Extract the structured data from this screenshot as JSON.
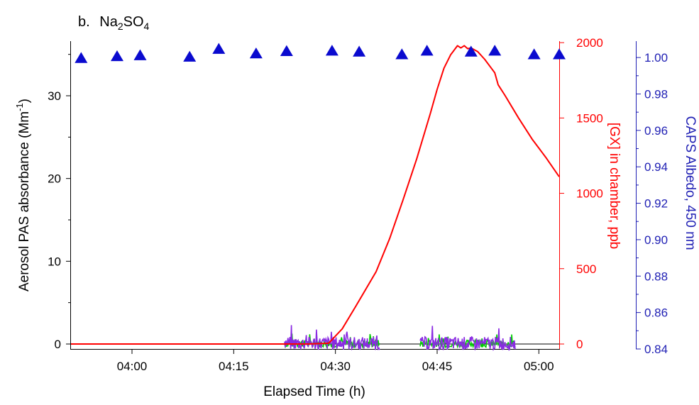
{
  "chart_data": {
    "type": "line",
    "panel_label": "b.",
    "title_main": "Na",
    "title_sub1": "2",
    "title_mid": "SO",
    "title_sub2": "4",
    "xlabel": "Elapsed Time (h)",
    "x_ticks": [
      "04:00",
      "04:15",
      "04:30",
      "04:45",
      "05:00"
    ],
    "x_tick_minutes": [
      0,
      15,
      30,
      45,
      60
    ],
    "xlim_minutes": [
      -9,
      63
    ],
    "left_axis": {
      "label_main": "Aerosol PAS absorbance (Mm",
      "label_sup": "-1",
      "label_end": ")",
      "ticks": [
        0,
        10,
        20,
        30
      ],
      "ylim": [
        -0.6,
        36.6
      ],
      "color": "#000000"
    },
    "right_axis_1": {
      "label": "[GX] in chamber, ppb",
      "ticks": [
        0,
        500,
        1000,
        1500,
        2000
      ],
      "ylim": [
        -33,
        2010
      ],
      "color": "#ff0000"
    },
    "right_axis_2": {
      "label": "CAPS Albedo, 450 nm",
      "ticks": [
        "0.84",
        "0.86",
        "0.88",
        "0.90",
        "0.92",
        "0.94",
        "0.96",
        "0.98",
        "1.00"
      ],
      "tick_values": [
        0.84,
        0.86,
        0.88,
        0.9,
        0.92,
        0.94,
        0.96,
        0.98,
        1.0
      ],
      "ylim": [
        0.84,
        1.009
      ],
      "color": "#1f1fb4"
    },
    "series": [
      {
        "name": "[GX] in chamber",
        "axis": "right_axis_1",
        "color": "#ff0000",
        "x": [
          -9,
          22,
          26,
          29,
          31,
          33,
          36,
          38,
          40,
          42,
          44,
          45,
          46,
          47,
          48,
          48.5,
          49,
          49.5,
          50,
          51,
          52,
          53,
          53.5,
          54,
          55,
          57,
          59,
          61,
          63
        ],
        "y": [
          0,
          0,
          0,
          5,
          100,
          250,
          480,
          700,
          960,
          1230,
          1530,
          1690,
          1830,
          1920,
          1980,
          1965,
          1980,
          1960,
          1965,
          1940,
          1890,
          1830,
          1800,
          1720,
          1650,
          1500,
          1360,
          1240,
          1110
        ]
      },
      {
        "name": "CAPS Albedo",
        "axis": "right_axis_2",
        "color": "#0a0acf",
        "marker": "triangle",
        "x": [
          -7.5,
          -2.2,
          1.2,
          8.5,
          12.8,
          18.3,
          22.8,
          29.5,
          33.5,
          39.8,
          43.5,
          50,
          53.5,
          59.3,
          63
        ],
        "y": [
          0.9995,
          1.0005,
          1.001,
          1.0002,
          1.0045,
          1.002,
          1.0033,
          1.0035,
          1.003,
          1.0015,
          1.0035,
          1.003,
          1.0035,
          1.0015,
          1.0015
        ]
      },
      {
        "name": "PAS absorbance (green)",
        "axis": "left_axis",
        "color": "#00cc00",
        "segments": [
          [
            22.5,
            36.5
          ],
          [
            42.5,
            56.5
          ]
        ],
        "amplitude": 0.9
      },
      {
        "name": "PAS absorbance (purple)",
        "axis": "left_axis",
        "color": "#8a2be2",
        "segments": [
          [
            22.5,
            36.5
          ],
          [
            42.5,
            56.5
          ]
        ],
        "amplitude": 1.6
      }
    ],
    "zero_line": true,
    "grid": false,
    "legend": "none"
  }
}
